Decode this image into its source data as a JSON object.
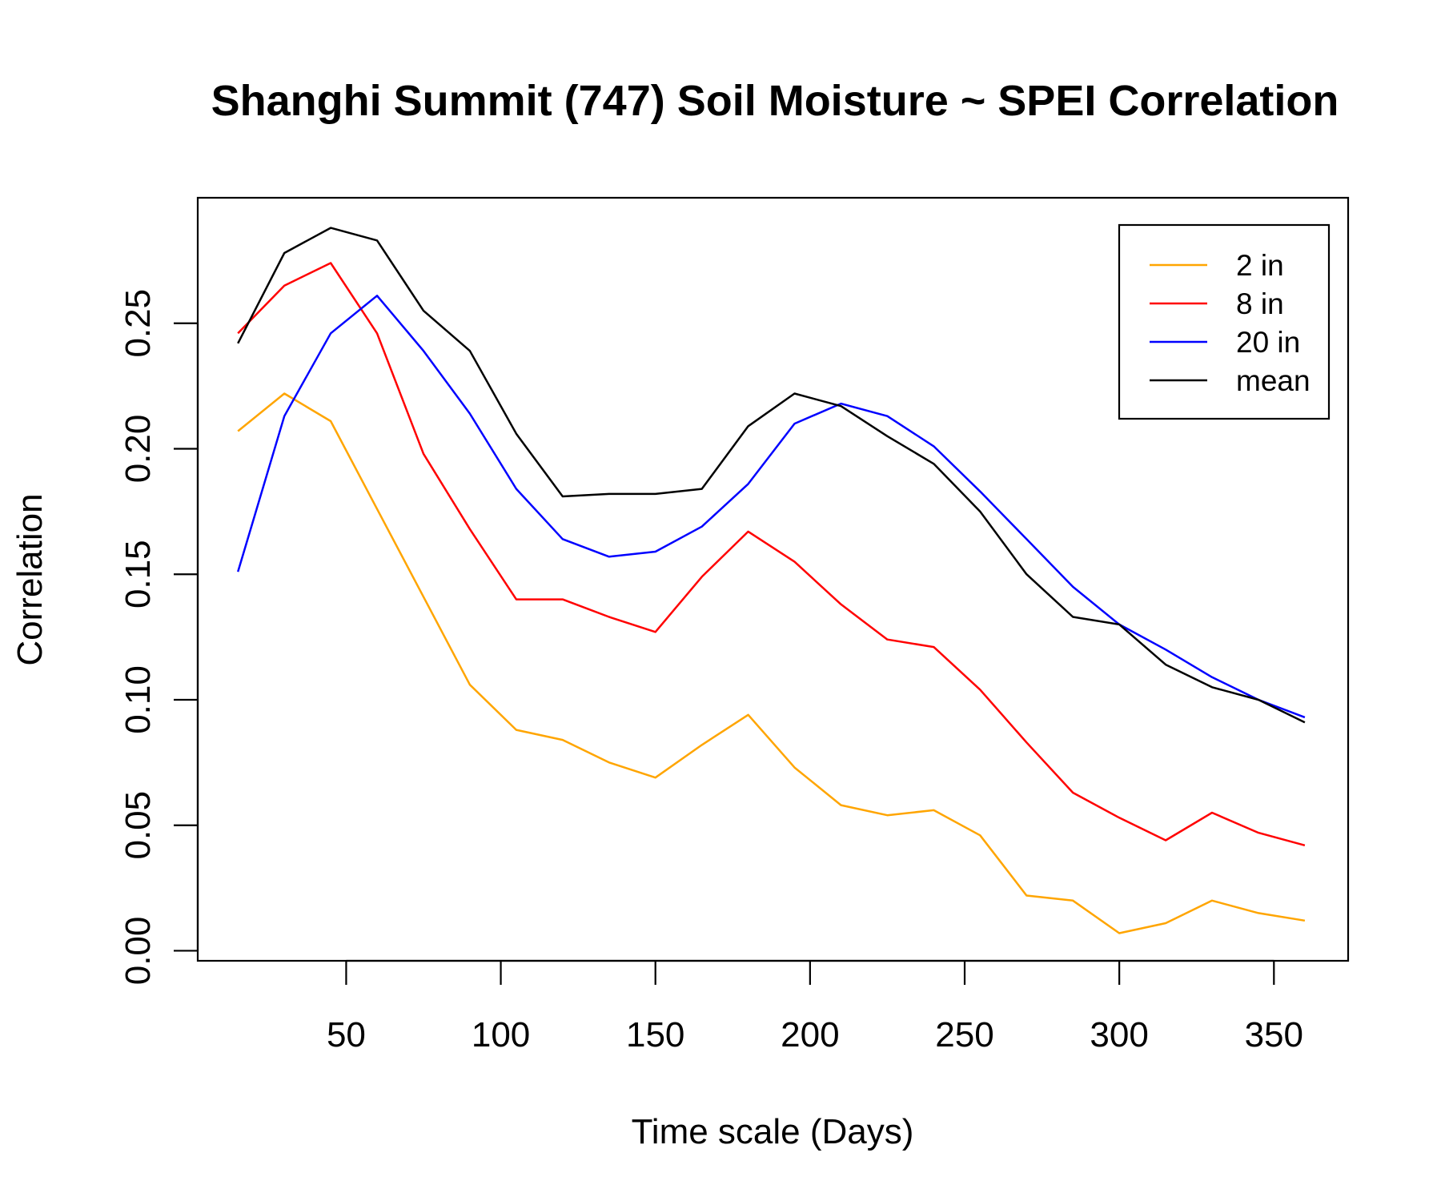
{
  "chart_data": {
    "type": "line",
    "title": "Shanghi Summit (747) Soil Moisture ~ SPEI Correlation",
    "xlabel": "Time scale (Days)",
    "ylabel": "Correlation",
    "xlim": [
      2,
      374
    ],
    "ylim": [
      -0.004,
      0.3
    ],
    "xticks": [
      50,
      100,
      150,
      200,
      250,
      300,
      350
    ],
    "xtick_labels": [
      "50",
      "100",
      "150",
      "200",
      "250",
      "300",
      "350"
    ],
    "yticks": [
      0,
      0.05,
      0.1,
      0.15,
      0.2,
      0.25
    ],
    "ytick_labels": [
      "0.00",
      "0.05",
      "0.10",
      "0.15",
      "0.20",
      "0.25"
    ],
    "grid": false,
    "legend_position": "top-right",
    "x": [
      15,
      30,
      45,
      60,
      75,
      90,
      105,
      120,
      135,
      150,
      165,
      180,
      195,
      210,
      225,
      240,
      255,
      270,
      285,
      300,
      315,
      330,
      345,
      360
    ],
    "series": [
      {
        "name": "2 in",
        "color": "#FFA500",
        "values": [
          0.207,
          0.222,
          0.211,
          0.176,
          0.141,
          0.106,
          0.088,
          0.084,
          0.075,
          0.069,
          0.082,
          0.094,
          0.073,
          0.058,
          0.054,
          0.056,
          0.046,
          0.022,
          0.02,
          0.007,
          0.011,
          0.02,
          0.015,
          0.012
        ]
      },
      {
        "name": "8 in",
        "color": "#FF0000",
        "values": [
          0.246,
          0.265,
          0.274,
          0.246,
          0.198,
          0.168,
          0.14,
          0.14,
          0.133,
          0.127,
          0.149,
          0.167,
          0.155,
          0.138,
          0.124,
          0.121,
          0.104,
          0.083,
          0.063,
          0.053,
          0.044,
          0.055,
          0.047,
          0.042
        ]
      },
      {
        "name": "20 in",
        "color": "#0000FF",
        "values": [
          0.151,
          0.213,
          0.246,
          0.261,
          0.239,
          0.214,
          0.184,
          0.164,
          0.157,
          0.159,
          0.169,
          0.186,
          0.21,
          0.218,
          0.213,
          0.201,
          0.183,
          0.164,
          0.145,
          0.13,
          0.12,
          0.109,
          0.1,
          0.093
        ]
      },
      {
        "name": "mean",
        "color": "#000000",
        "values": [
          0.242,
          0.278,
          0.288,
          0.283,
          0.255,
          0.239,
          0.206,
          0.181,
          0.182,
          0.182,
          0.184,
          0.209,
          0.222,
          0.217,
          0.205,
          0.194,
          0.175,
          0.15,
          0.133,
          0.13,
          0.114,
          0.105,
          0.1,
          0.091
        ]
      }
    ]
  }
}
